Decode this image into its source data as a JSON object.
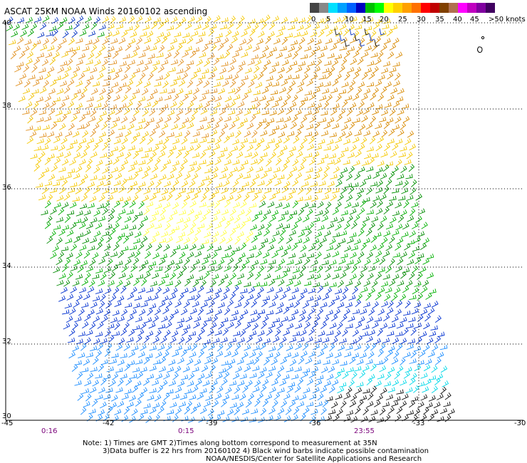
{
  "title": "ASCAT 25KM NOAA Winds 20160102 ascending",
  "legend": {
    "labels": [
      "0",
      "5",
      "10",
      "15",
      "20",
      "25",
      "30",
      "35",
      "40",
      "45",
      ">50 knots"
    ],
    "colors": [
      "#444444",
      "#888888",
      "#00e0ff",
      "#00a0ff",
      "#0060ff",
      "#0000c0",
      "#00c000",
      "#00ff00",
      "#ffff00",
      "#ffd000",
      "#ffa000",
      "#ff7000",
      "#ff0000",
      "#c00000",
      "#804000",
      "#b07050",
      "#ff00ff",
      "#c000c0",
      "#8000a0",
      "#400060"
    ]
  },
  "axes": {
    "lat_labels": [
      "30",
      "32",
      "34",
      "36",
      "38",
      "40"
    ],
    "lon_labels": [
      "-45",
      "-42",
      "-39",
      "-36",
      "-33",
      "-30"
    ]
  },
  "time_labels": [
    "0:16",
    "0:15",
    "23:55"
  ],
  "notes": {
    "line1": "Note: 1) Times are GMT 2)Times along bottom correspond to measurement at 35N",
    "line2": "3)Data buffer is 22 hrs from 20160102 4) Black wind barbs indicate possible contamination",
    "line3": "NOAA/NESDIS/Center for Satellite Applications and Research"
  }
}
